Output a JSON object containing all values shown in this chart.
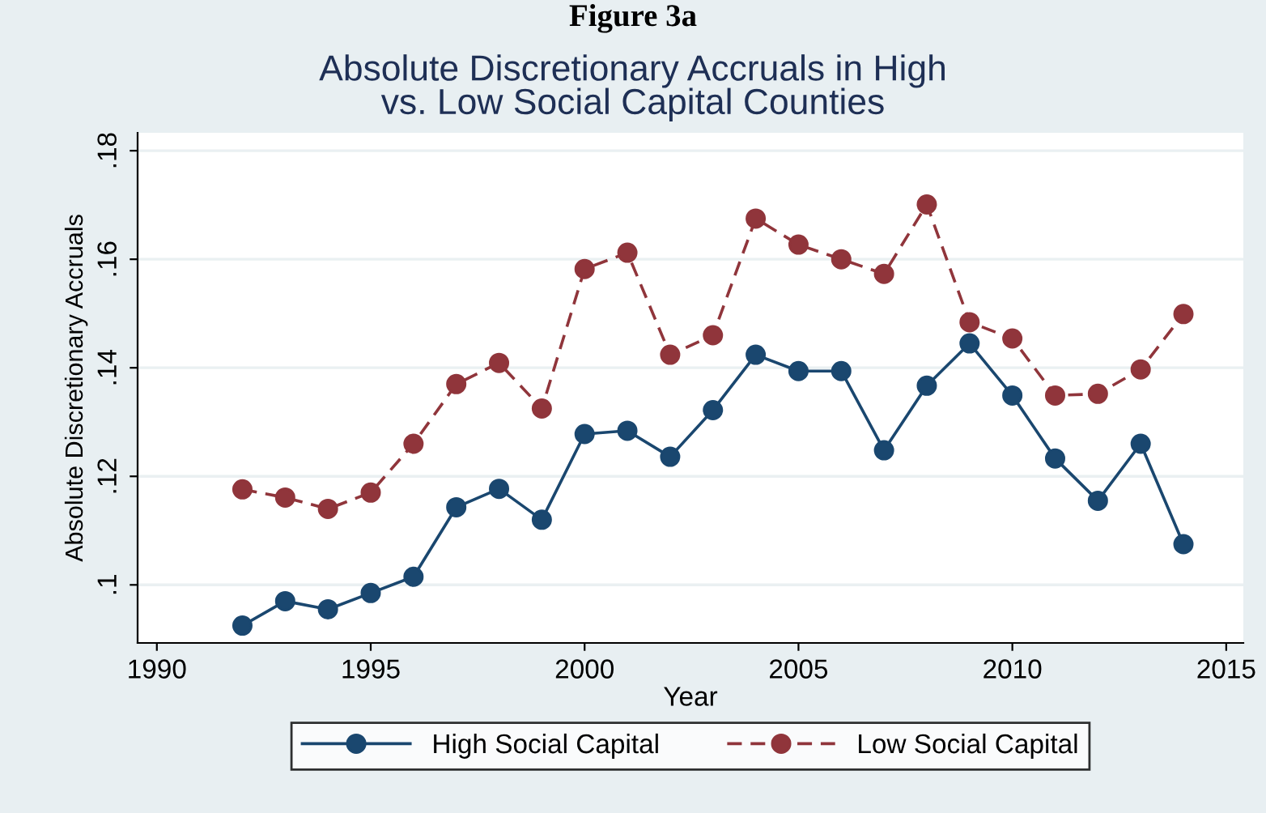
{
  "chart_data": {
    "type": "line",
    "title": "Absolute Discretionary Accruals in High\nvs. Low Social Capital Counties",
    "xlabel": "Year",
    "ylabel": "Absolute Discretionary Accruals",
    "annotations": [
      "Figure 3a"
    ],
    "x": [
      1992,
      1993,
      1994,
      1995,
      1996,
      1997,
      1998,
      1999,
      2000,
      2001,
      2002,
      2003,
      2004,
      2005,
      2006,
      2007,
      2008,
      2009,
      2010,
      2011,
      2012,
      2013,
      2014
    ],
    "series": [
      {
        "name": "High Social Capital",
        "color": "#1a476f",
        "line_style": "solid",
        "values": [
          0.0925,
          0.097,
          0.0955,
          0.0985,
          0.1015,
          0.1143,
          0.1177,
          0.112,
          0.1278,
          0.1284,
          0.1236,
          0.1322,
          0.1424,
          0.1394,
          0.1394,
          0.1248,
          0.1367,
          0.1445,
          0.1349,
          0.1233,
          0.1155,
          0.126,
          0.1075
        ]
      },
      {
        "name": "Low Social Capital",
        "color": "#90353b",
        "line_style": "dashed",
        "values": [
          0.1176,
          0.1161,
          0.114,
          0.117,
          0.126,
          0.137,
          0.1409,
          0.1325,
          0.1582,
          0.1612,
          0.1424,
          0.146,
          0.1675,
          0.1627,
          0.16,
          0.1573,
          0.1701,
          0.1484,
          0.1454,
          0.1349,
          0.1352,
          0.1397,
          0.1499
        ]
      }
    ],
    "xlim": [
      1989.55,
      2015.4
    ],
    "xticks": [
      1990,
      1995,
      2000,
      2005,
      2010,
      2015
    ],
    "ylim": [
      0.0893,
      0.1833
    ],
    "yticks": [
      {
        "value": 0.1,
        "label": ".1"
      },
      {
        "value": 0.12,
        "label": ".12"
      },
      {
        "value": 0.14,
        "label": ".14"
      },
      {
        "value": 0.16,
        "label": ".16"
      },
      {
        "value": 0.18,
        "label": ".18"
      }
    ],
    "grid": "y",
    "legend": "bottom",
    "marker": "circle"
  }
}
